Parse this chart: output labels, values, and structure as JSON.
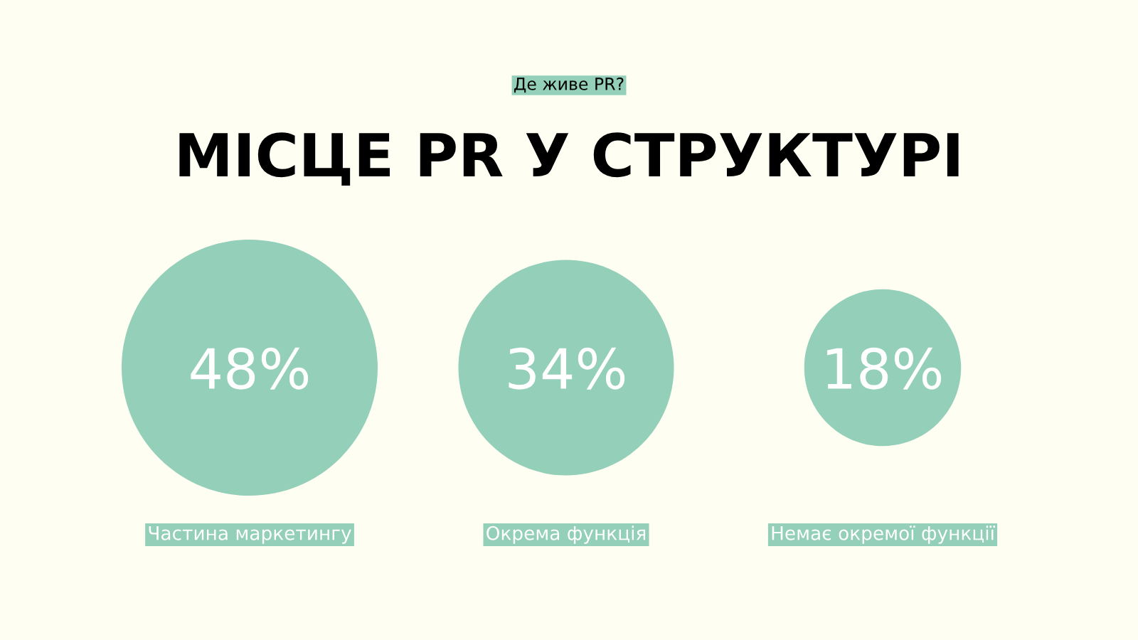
{
  "chart_data": {
    "type": "other",
    "title": "МІСЦЕ PR У СТРУКТУРІ",
    "subtitle": "Де живе PR?",
    "categories": [
      "Частина маркетингу",
      "Окрема функція",
      "Немає окремої функції"
    ],
    "values": [
      48,
      34,
      18
    ],
    "value_labels": [
      "48%",
      "34%",
      "18%"
    ],
    "color": "#93cfb9"
  }
}
